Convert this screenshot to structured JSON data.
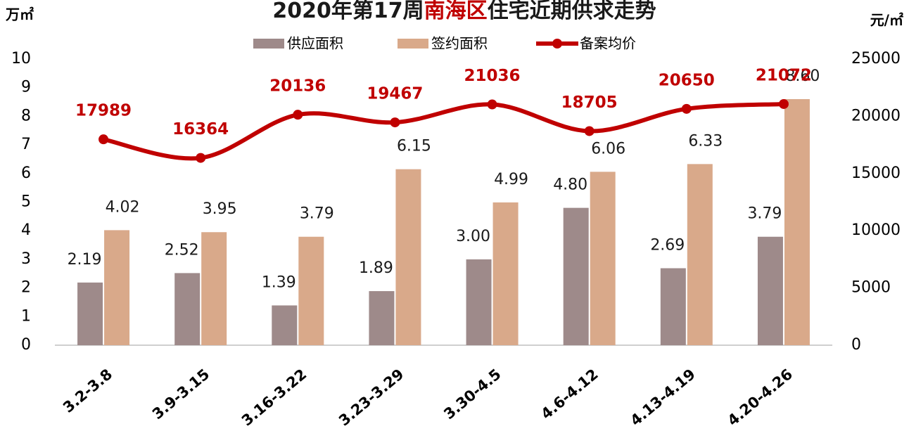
{
  "chart_data": {
    "type": "bar_line",
    "title": [
      {
        "text": "2020年第17周",
        "color": "#1a1a1a"
      },
      {
        "text": "南海区",
        "color": "#c00000"
      },
      {
        "text": "住宅近期供求走势",
        "color": "#1a1a1a"
      }
    ],
    "ylabel": "万㎡",
    "y2label": "元/㎡",
    "categories": [
      "3.2-3.8",
      "3.9-3.15",
      "3.16-3.22",
      "3.23-3.29",
      "3.30-4.5",
      "4.6-4.12",
      "4.13-4.19",
      "4.20-4.26"
    ],
    "series": [
      {
        "name": "供应面积",
        "color": "#9e8a8a",
        "kind": "bar",
        "values": [
          2.19,
          2.52,
          1.39,
          1.89,
          3.0,
          4.8,
          2.69,
          3.79
        ],
        "value_labels": [
          "2.19",
          "2.52",
          "1.39",
          "1.89",
          "3.00",
          "4.80",
          "2.69",
          "3.79"
        ]
      },
      {
        "name": "签约面积",
        "color": "#d9a98a",
        "kind": "bar",
        "values": [
          4.02,
          3.95,
          3.79,
          6.15,
          4.99,
          6.06,
          6.33,
          8.6
        ],
        "value_labels": [
          "4.02",
          "3.95",
          "3.79",
          "6.15",
          "4.99",
          "6.06",
          "6.33",
          "8.60"
        ]
      },
      {
        "name": "备案均价",
        "color": "#c00000",
        "kind": "line",
        "axis": "y2",
        "values": [
          17989,
          16364,
          20136,
          19467,
          21036,
          18705,
          20650,
          21072
        ]
      }
    ],
    "ylim": [
      0,
      10
    ],
    "yticks": [
      0,
      1,
      2,
      3,
      4,
      5,
      6,
      7,
      8,
      9,
      10
    ],
    "y2lim": [
      0,
      25000
    ],
    "y2ticks": [
      0,
      5000,
      10000,
      15000,
      20000,
      25000
    ],
    "legend": "top"
  }
}
